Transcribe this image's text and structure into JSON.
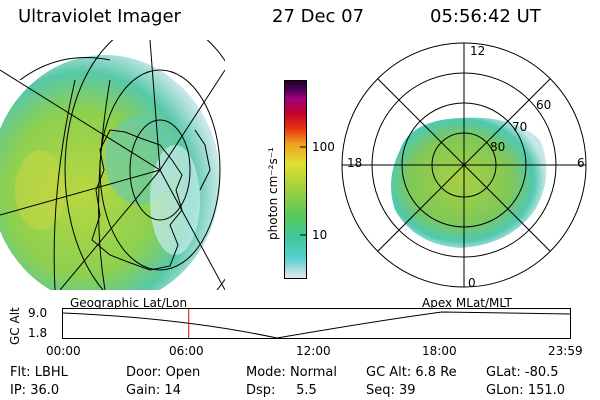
{
  "header": {
    "instrument": "Ultraviolet Imager",
    "date": "27 Dec 07",
    "time": "05:56:42 UT"
  },
  "colorbar": {
    "unit_label": "photon cm⁻²s⁻¹",
    "ticks": [
      "100",
      "10"
    ],
    "stops": [
      "#e8e8e8",
      "#58d0d0",
      "#40c8a0",
      "#58c858",
      "#a0d040",
      "#e0e030",
      "#f0a020",
      "#e83010",
      "#c00030",
      "#a00080",
      "#400050",
      "#200020"
    ]
  },
  "polar_plot": {
    "mlt_labels": [
      "12",
      "18",
      "6",
      "0"
    ],
    "lat_labels": [
      "60",
      "70",
      "80"
    ]
  },
  "timeline": {
    "left_label": "Geographic Lat/Lon",
    "right_label": "Apex  MLat/MLT",
    "axis_title": "GC Alt",
    "y_ticks": [
      "9.0",
      "1.8"
    ],
    "x_ticks": [
      "00:00",
      "06:00",
      "12:00",
      "18:00",
      "23:59"
    ],
    "current_time_fraction": 0.248
  },
  "status": {
    "flt_label": "Flt:",
    "flt_value": "LBHL",
    "ip_label": "IP:",
    "ip_value": "36.0",
    "door_label": "Door:",
    "door_value": "Open",
    "gain_label": "Gain:",
    "gain_value": "14",
    "mode_label": "Mode:",
    "mode_value": "Normal",
    "dsp_label": "Dsp:",
    "dsp_value": "5.5",
    "gcalt_label": "GC Alt:",
    "gcalt_value": "6.8 Re",
    "seq_label": "Seq:",
    "seq_value": "39",
    "glat_label": "GLat:",
    "glat_value": "-80.5",
    "glon_label": "GLon:",
    "glon_value": "151.0"
  }
}
